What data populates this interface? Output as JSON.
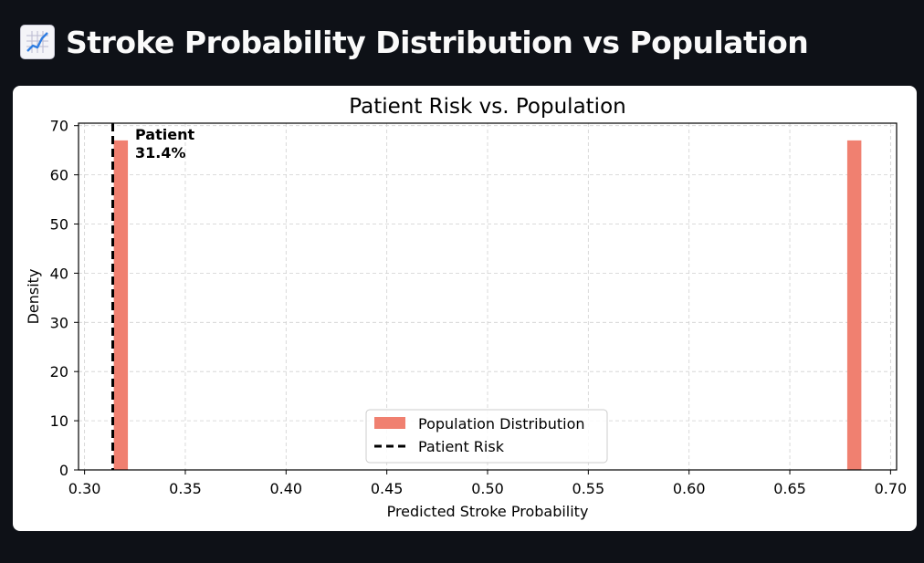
{
  "header": {
    "icon": "chart-increasing-icon",
    "title": "Stroke Probability Distribution vs Population"
  },
  "chart_data": {
    "type": "bar",
    "title": "Patient Risk vs. Population",
    "xlabel": "Predicted Stroke Probability",
    "ylabel": "Density",
    "xlim": [
      0.297,
      0.703
    ],
    "ylim": [
      0,
      70.5
    ],
    "xticks": [
      "0.30",
      "0.35",
      "0.40",
      "0.45",
      "0.50",
      "0.55",
      "0.60",
      "0.65",
      "0.70"
    ],
    "yticks": [
      "0",
      "10",
      "20",
      "30",
      "40",
      "50",
      "60",
      "70"
    ],
    "grid": true,
    "series": [
      {
        "name": "Population Distribution",
        "color": "#f08070",
        "bins": [
          {
            "x0": 0.3145,
            "x1": 0.3215,
            "density": 67
          },
          {
            "x0": 0.6785,
            "x1": 0.6855,
            "density": 67
          }
        ]
      }
    ],
    "reference_line": {
      "name": "Patient Risk",
      "x": 0.314,
      "style": "dashed",
      "color": "#000000"
    },
    "annotation": {
      "line1": "Patient",
      "line2": "31.4%"
    },
    "legend_position": "bottom-center"
  }
}
